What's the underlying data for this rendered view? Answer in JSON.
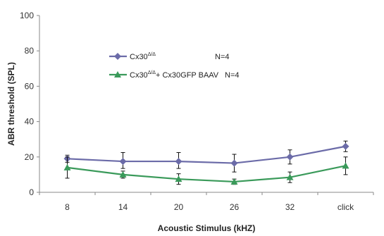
{
  "chart_data": {
    "type": "line",
    "title": "",
    "xlabel": "Acoustic Stimulus (kHZ)",
    "ylabel": "ABR threshold (SPL)",
    "categories": [
      "8",
      "14",
      "20",
      "26",
      "32",
      "click"
    ],
    "ylim": [
      0,
      100
    ],
    "yticks": [
      "0",
      "20",
      "40",
      "60",
      "80",
      "100"
    ],
    "grid": false,
    "legend_placement": "top-left",
    "series": [
      {
        "name": "Cx30",
        "name_superscript": "Δ/Δ",
        "name_suffix": "",
        "n_label": "N=4",
        "color": "#6b6ba8",
        "marker": "diamond",
        "values": [
          19,
          17.5,
          17.5,
          16.5,
          20,
          26
        ],
        "err_low": [
          2,
          4,
          4,
          5,
          4,
          3
        ],
        "err_high": [
          2,
          5,
          5,
          5,
          4,
          3
        ]
      },
      {
        "name": "Cx30",
        "name_superscript": "Δ/Δ",
        "name_suffix": "+ Cx30GFP BAAV",
        "n_label": "N=4",
        "color": "#3a9a5a",
        "marker": "triangle",
        "values": [
          14,
          10,
          7.5,
          6,
          8.5,
          15
        ],
        "err_low": [
          6,
          2,
          3,
          1.5,
          3,
          5
        ],
        "err_high": [
          6,
          2,
          3,
          1.5,
          3,
          5
        ]
      }
    ]
  }
}
